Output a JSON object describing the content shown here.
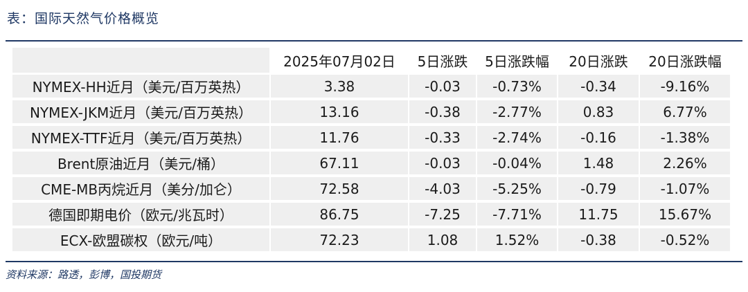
{
  "title": "表：国际天然气价格概览",
  "table": {
    "headers": [
      "",
      "2025年07月02日",
      "5日涨跌",
      "5日涨跌幅",
      "20日涨跌",
      "20日涨跌幅"
    ],
    "rows": [
      [
        "NYMEX-HH近月（美元/百万英热）",
        "3.38",
        "-0.03",
        "-0.73%",
        "-0.34",
        "-9.16%"
      ],
      [
        "NYMEX-JKM近月（美元/百万英热）",
        "13.16",
        "-0.38",
        "-2.77%",
        "0.83",
        "6.77%"
      ],
      [
        "NYMEX-TTF近月（美元/百万英热）",
        "11.76",
        "-0.33",
        "-2.74%",
        "-0.16",
        "-1.38%"
      ],
      [
        "Brent原油近月（美元/桶）",
        "67.11",
        "-0.03",
        "-0.04%",
        "1.48",
        "2.26%"
      ],
      [
        "CME-MB丙烷近月（美分/加仑）",
        "72.58",
        "-4.03",
        "-5.25%",
        "-0.79",
        "-1.07%"
      ],
      [
        "德国即期电价（欧元/兆瓦时）",
        "86.75",
        "-7.25",
        "-7.71%",
        "11.75",
        "15.67%"
      ],
      [
        "ECX-欧盟碳权（欧元/吨）",
        "72.23",
        "1.08",
        "1.52%",
        "-0.38",
        "-0.52%"
      ]
    ]
  },
  "source": "资料来源：路透，彭博，国投期货",
  "colors": {
    "accent": "#1f3864",
    "cell_bg": "#efefef"
  }
}
